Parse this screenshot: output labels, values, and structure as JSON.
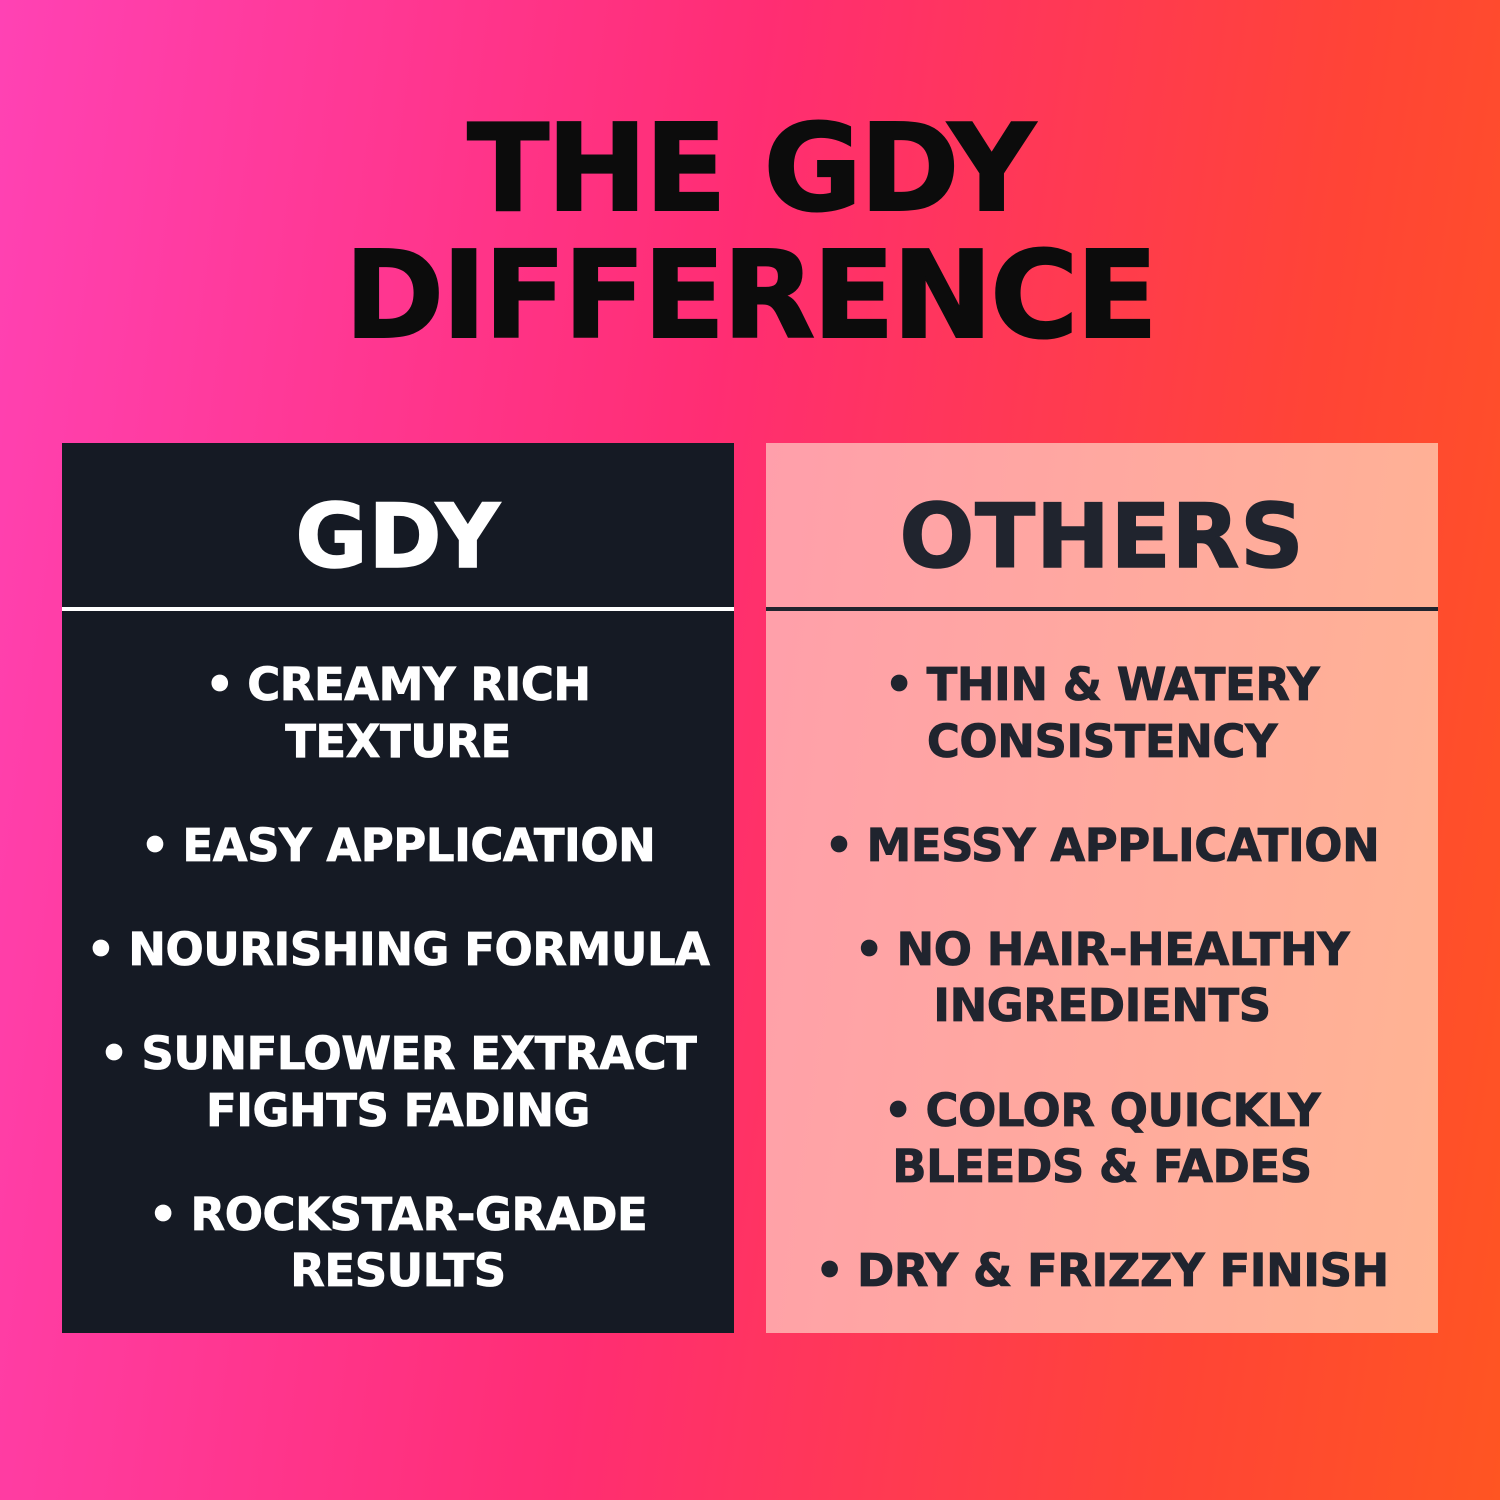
{
  "page": {
    "title_line1": "THE GDY",
    "title_line2": "DIFFERENCE"
  },
  "ui": {
    "bullet_glyph": "•"
  },
  "colors": {
    "bg_pink": "#ff42b4",
    "bg_crimson": "#ff2d73",
    "bg_red": "#ff4436",
    "bg_orange": "#ff5522",
    "title_text": "#0c0c0c",
    "dark_card_bg": "#151a24",
    "dark_card_text": "#ffffff",
    "light_card_from": "#ff9fab",
    "light_card_to": "#ffb492",
    "light_card_text": "#20242e",
    "divider_light": "#ffffff",
    "divider_dark": "#20242e"
  },
  "cards": [
    {
      "id": "gdy",
      "title": "GDY",
      "items": [
        [
          "CREAMY RICH",
          "TEXTURE"
        ],
        [
          "EASY APPLICATION"
        ],
        [
          "NOURISHING FORMULA"
        ],
        [
          "SUNFLOWER EXTRACT",
          "FIGHTS FADING"
        ],
        [
          "ROCKSTAR-GRADE",
          "RESULTS"
        ]
      ]
    },
    {
      "id": "others",
      "title": "OTHERS",
      "items": [
        [
          "THIN & WATERY",
          "CONSISTENCY"
        ],
        [
          "MESSY APPLICATION"
        ],
        [
          "NO HAIR-HEALTHY",
          "INGREDIENTS"
        ],
        [
          "COLOR QUICKLY",
          "BLEEDS & FADES"
        ],
        [
          "DRY & FRIZZY FINISH"
        ]
      ]
    }
  ]
}
